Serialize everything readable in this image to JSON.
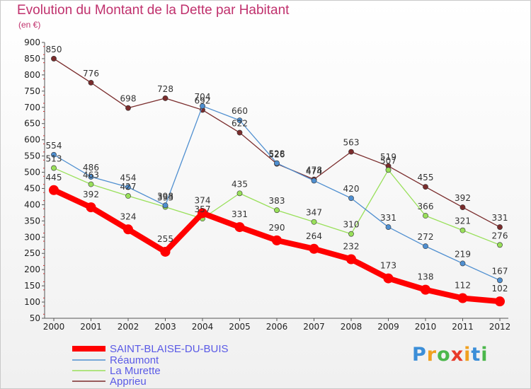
{
  "title": "Evolution du Montant de la Dette par Habitant",
  "subtitle": "(en €)",
  "logo_text": "Proxiti",
  "chart_data": {
    "type": "line",
    "title": "Evolution du Montant de la Dette par Habitant",
    "subtitle": "(en €)",
    "xlabel": "",
    "ylabel": "",
    "x": [
      "2000",
      "2001",
      "2002",
      "2003",
      "2004",
      "2005",
      "2006",
      "2007",
      "2008",
      "2009",
      "2010",
      "2011",
      "2012"
    ],
    "ylim": [
      50,
      900
    ],
    "yticks": [
      50,
      100,
      150,
      200,
      250,
      300,
      350,
      400,
      450,
      500,
      550,
      600,
      650,
      700,
      750,
      800,
      850,
      900
    ],
    "grid": false,
    "legend_position": "bottom-left",
    "series": [
      {
        "name": "SAINT-BLAISE-DU-BUIS",
        "color": "#ff0000",
        "values": [
          445,
          392,
          324,
          255,
          374,
          331,
          290,
          264,
          232,
          173,
          138,
          112,
          102
        ]
      },
      {
        "name": "Réaumont",
        "color": "#4f8fd0",
        "values": [
          554,
          486,
          454,
          398,
          704,
          660,
          528,
          474,
          420,
          331,
          272,
          219,
          167
        ]
      },
      {
        "name": "La Murette",
        "color": "#99e05a",
        "values": [
          513,
          463,
          427,
          393,
          357,
          435,
          383,
          347,
          310,
          507,
          366,
          321,
          276
        ]
      },
      {
        "name": "Apprieu",
        "color": "#7a2c2c",
        "values": [
          850,
          776,
          698,
          728,
          692,
          622,
          526,
          478,
          563,
          519,
          455,
          392,
          331
        ]
      }
    ]
  }
}
